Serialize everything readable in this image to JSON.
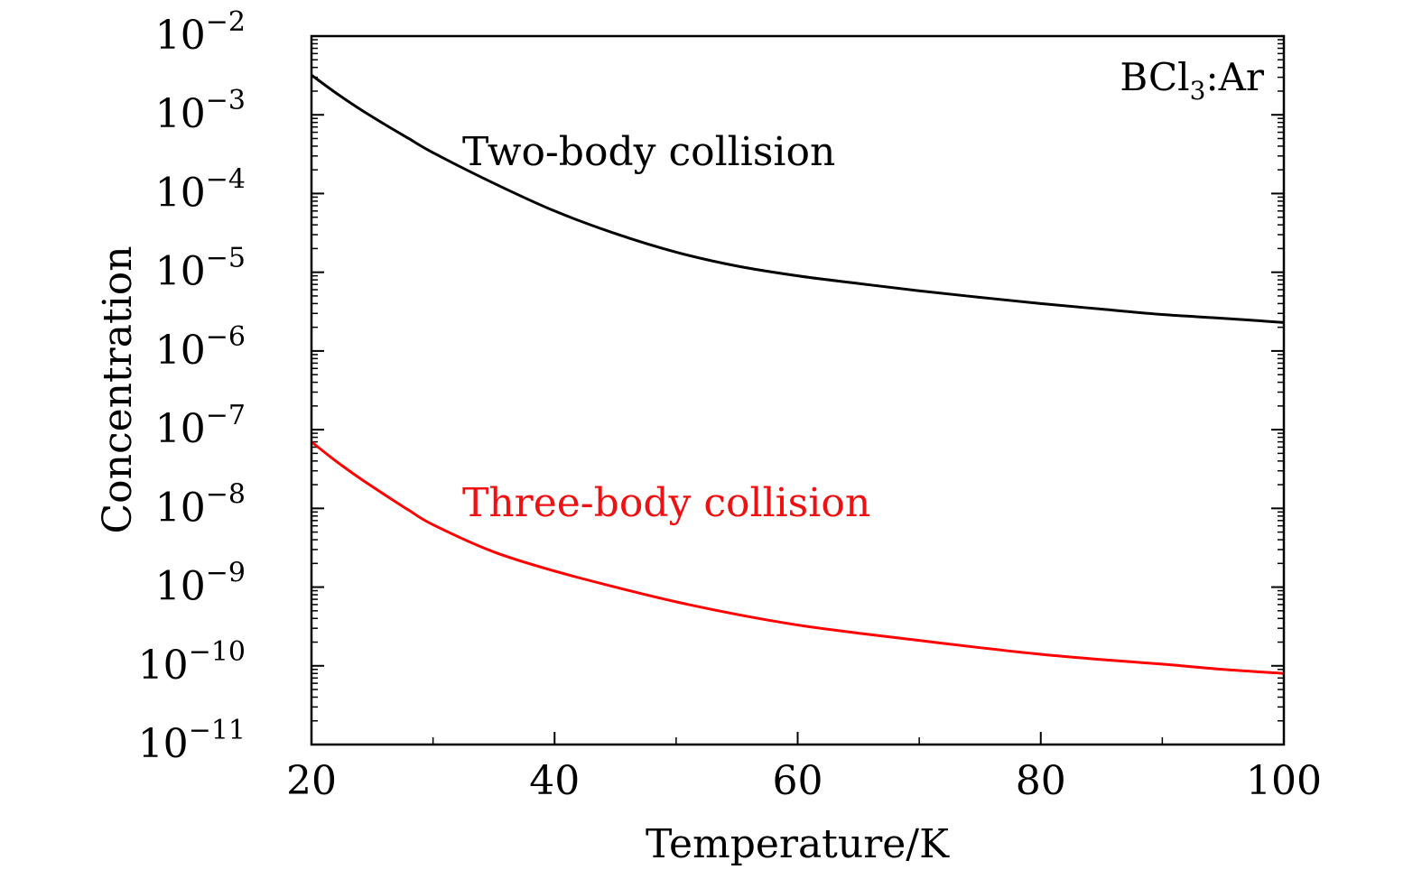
{
  "chart_data": {
    "type": "line",
    "title": "",
    "xlabel": "Temperature/K",
    "ylabel": "Concentration",
    "xlim": [
      20,
      100
    ],
    "ylim": [
      1e-11,
      0.01
    ],
    "yscale": "log",
    "grid": false,
    "x_ticks": [
      20,
      40,
      60,
      80,
      100
    ],
    "x_tick_labels": [
      "20",
      "40",
      "60",
      "80",
      "100"
    ],
    "y_tick_exponents": [
      -11,
      -10,
      -9,
      -8,
      -7,
      -6,
      -5,
      -4,
      -3,
      -2
    ],
    "y_tick_base": "10",
    "annotations": {
      "system": {
        "main": "BCl",
        "sub": "3",
        "rest": ":Ar"
      },
      "two_body": "Two-body collision",
      "three_body": "Three-body collision"
    },
    "series": [
      {
        "key": "two_body",
        "color": "#000000",
        "x": [
          20,
          22,
          24,
          26,
          28,
          30,
          35,
          40,
          45,
          50,
          55,
          60,
          65,
          70,
          75,
          80,
          85,
          90,
          95,
          100
        ],
        "y": [
          0.0032,
          0.0019,
          0.00118,
          0.00076,
          0.0005,
          0.00033,
          0.000135,
          6e-05,
          3.1e-05,
          1.8e-05,
          1.2e-05,
          9e-06,
          7.2e-06,
          5.8e-06,
          4.8e-06,
          4e-06,
          3.4e-06,
          2.9e-06,
          2.6e-06,
          2.3e-06
        ]
      },
      {
        "key": "three_body",
        "color": "#ff0000",
        "x": [
          20,
          22,
          24,
          26,
          28,
          30,
          35,
          40,
          45,
          50,
          55,
          60,
          65,
          70,
          75,
          80,
          85,
          90,
          95,
          100
        ],
        "y": [
          7e-08,
          4e-08,
          2.4e-08,
          1.5e-08,
          9.5e-09,
          6.2e-09,
          2.8e-09,
          1.6e-09,
          1e-09,
          6.5e-10,
          4.5e-10,
          3.3e-10,
          2.6e-10,
          2.1e-10,
          1.7e-10,
          1.4e-10,
          1.2e-10,
          1.05e-10,
          9e-11,
          8e-11
        ]
      }
    ]
  }
}
